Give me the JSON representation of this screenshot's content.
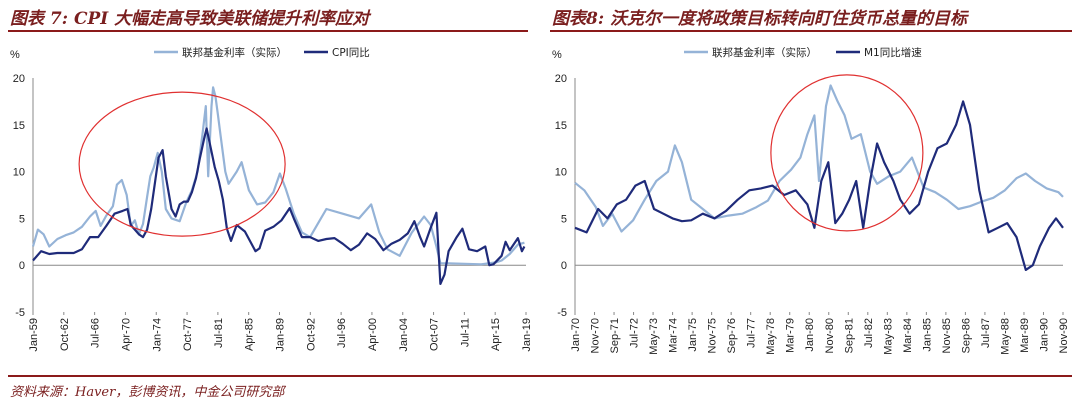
{
  "left_title": "图表 7: CPI 大幅走高导致美联储提升利率应对",
  "right_title": "图表8:  沃克尔一度将政策目标转向盯住货币总量的目标",
  "source": "资料来源：Haver，彭博资讯，中金公司研究部",
  "colors": {
    "light": "#95b3d7",
    "dark": "#1f2b7a",
    "circle": "#e03030",
    "title": "#7a1f1f"
  },
  "chart_data": [
    {
      "type": "line",
      "title": "图表 7: CPI 大幅走高导致美联储提升利率应对",
      "ylabel": "%",
      "ylim": [
        -5,
        20
      ],
      "yticks": [
        -5,
        0,
        5,
        10,
        15,
        20
      ],
      "xticks": [
        "Jan-59",
        "Oct-62",
        "Jul-66",
        "Apr-70",
        "Jan-74",
        "Oct-77",
        "Jul-81",
        "Apr-85",
        "Jan-89",
        "Oct-92",
        "Jul-96",
        "Apr-00",
        "Jan-04",
        "Oct-07",
        "Jul-11",
        "Apr-15",
        "Jan-19"
      ],
      "xrange": [
        1959.0,
        2019.5
      ],
      "legend_position": "top-center",
      "series": [
        {
          "name": "联邦基金利率（实际）",
          "color_key": "light",
          "x": [
            1959.0,
            1959.6,
            1960.3,
            1961.0,
            1962.0,
            1963.0,
            1964.0,
            1965.0,
            1966.0,
            1966.7,
            1967.3,
            1968.0,
            1968.8,
            1969.3,
            1969.9,
            1970.5,
            1971.0,
            1971.5,
            1972.0,
            1972.5,
            1973.0,
            1973.4,
            1973.8,
            1974.3,
            1974.8,
            1975.3,
            1976.0,
            1977.0,
            1977.8,
            1978.5,
            1979.2,
            1979.8,
            1980.2,
            1980.5,
            1980.9,
            1981.1,
            1981.4,
            1981.7,
            1982.0,
            1982.6,
            1983.0,
            1984.0,
            1984.6,
            1985.5,
            1986.5,
            1987.5,
            1988.5,
            1989.3,
            1990.0,
            1991.0,
            1992.0,
            1993.0,
            1994.0,
            1995.0,
            1997.0,
            1999.0,
            2000.5,
            2001.5,
            2002.5,
            2004.0,
            2005.5,
            2007.0,
            2007.8,
            2008.5,
            2009.0,
            2010.0,
            2012.0,
            2014.0,
            2015.8,
            2016.5,
            2017.5,
            2018.5,
            2019.3
          ],
          "y": [
            2.0,
            3.8,
            3.3,
            2.0,
            2.8,
            3.2,
            3.5,
            4.1,
            5.2,
            5.8,
            4.2,
            5.3,
            6.3,
            8.6,
            9.1,
            7.5,
            4.2,
            4.8,
            3.3,
            4.4,
            7.3,
            9.5,
            10.4,
            12.0,
            10.0,
            6.0,
            5.0,
            4.7,
            6.7,
            8.0,
            10.0,
            14.0,
            17.0,
            9.5,
            17.0,
            19.0,
            18.0,
            16.0,
            14.0,
            10.0,
            8.7,
            10.0,
            11.0,
            8.0,
            6.5,
            6.7,
            7.8,
            9.8,
            8.2,
            5.5,
            3.5,
            3.0,
            4.5,
            6.0,
            5.5,
            5.0,
            6.5,
            3.5,
            1.7,
            1.0,
            3.5,
            5.2,
            4.3,
            2.0,
            0.2,
            0.2,
            0.15,
            0.1,
            0.3,
            0.5,
            1.2,
            2.2,
            2.4
          ]
        },
        {
          "name": "CPI同比",
          "color_key": "dark",
          "x": [
            1959.0,
            1960.0,
            1961.0,
            1962.0,
            1963.0,
            1964.0,
            1965.0,
            1966.0,
            1967.0,
            1968.0,
            1969.0,
            1970.0,
            1970.6,
            1971.0,
            1972.0,
            1972.5,
            1973.0,
            1973.5,
            1974.0,
            1974.4,
            1974.9,
            1975.3,
            1976.0,
            1976.5,
            1977.0,
            1977.5,
            1978.0,
            1978.5,
            1979.0,
            1979.5,
            1980.0,
            1980.3,
            1980.8,
            1981.3,
            1981.8,
            1982.3,
            1982.8,
            1983.3,
            1984.0,
            1985.0,
            1986.3,
            1986.8,
            1987.5,
            1988.5,
            1989.5,
            1990.5,
            1991.0,
            1992.0,
            1993.0,
            1994.0,
            1995.0,
            1996.0,
            1997.0,
            1998.0,
            1999.0,
            2000.0,
            2001.0,
            2002.0,
            2003.0,
            2004.0,
            2005.0,
            2005.8,
            2006.5,
            2007.0,
            2007.8,
            2008.5,
            2009.0,
            2009.5,
            2010.0,
            2011.0,
            2011.7,
            2012.5,
            2013.5,
            2014.5,
            2015.0,
            2015.5,
            2016.5,
            2017.0,
            2017.5,
            2018.5,
            2019.0,
            2019.3
          ],
          "y": [
            0.5,
            1.5,
            1.2,
            1.3,
            1.3,
            1.3,
            1.7,
            3.0,
            3.0,
            4.2,
            5.5,
            5.8,
            6.0,
            4.3,
            3.3,
            3.0,
            3.8,
            6.0,
            9.0,
            11.5,
            12.3,
            9.5,
            6.0,
            5.2,
            6.5,
            6.8,
            6.8,
            7.8,
            9.3,
            11.5,
            13.5,
            14.6,
            12.6,
            10.5,
            9.0,
            7.0,
            3.9,
            2.6,
            4.3,
            3.6,
            1.5,
            1.8,
            3.7,
            4.1,
            4.8,
            6.1,
            5.0,
            3.0,
            3.0,
            2.6,
            2.8,
            2.9,
            2.3,
            1.6,
            2.2,
            3.4,
            2.8,
            1.6,
            2.3,
            2.7,
            3.4,
            4.7,
            3.0,
            2.0,
            4.0,
            5.6,
            -2.0,
            -1.0,
            1.5,
            3.0,
            3.9,
            1.7,
            1.5,
            2.0,
            0.0,
            0.1,
            1.0,
            2.5,
            1.6,
            2.9,
            1.5,
            2.0
          ]
        }
      ]
    },
    {
      "type": "line",
      "title": "图表8:  沃克尔一度将政策目标转向盯住货币总量的目标",
      "ylabel": "%",
      "ylim": [
        -5,
        20
      ],
      "yticks": [
        -5,
        0,
        5,
        10,
        15,
        20
      ],
      "xticks": [
        "Jan-70",
        "Nov-70",
        "Sep-71",
        "Jul-72",
        "May-73",
        "Mar-74",
        "Jan-75",
        "Nov-75",
        "Sep-76",
        "Jul-77",
        "May-78",
        "Mar-79",
        "Jan-80",
        "Nov-80",
        "Sep-81",
        "Jul-82",
        "May-83",
        "Mar-84",
        "Jan-85",
        "Nov-85",
        "Sep-86",
        "Jul-87",
        "May-88",
        "Mar-89",
        "Jan-90",
        "Nov-90"
      ],
      "xrange": [
        1970.0,
        1991.0
      ],
      "legend_position": "top-center",
      "series": [
        {
          "name": "联邦基金利率（实际）",
          "color_key": "light",
          "x": [
            1970.0,
            1970.4,
            1970.9,
            1971.2,
            1971.6,
            1972.0,
            1972.5,
            1973.0,
            1973.5,
            1974.0,
            1974.3,
            1974.6,
            1975.0,
            1975.5,
            1976.0,
            1976.6,
            1977.2,
            1977.8,
            1978.3,
            1978.8,
            1979.3,
            1979.7,
            1980.0,
            1980.3,
            1980.5,
            1980.8,
            1981.0,
            1981.3,
            1981.6,
            1981.9,
            1982.3,
            1982.7,
            1983.0,
            1983.5,
            1984.0,
            1984.5,
            1985.0,
            1985.5,
            1986.0,
            1986.5,
            1987.0,
            1987.5,
            1988.0,
            1988.5,
            1989.0,
            1989.4,
            1989.8,
            1990.3,
            1990.8,
            1991.0
          ],
          "y": [
            8.8,
            8.0,
            6.2,
            4.2,
            5.5,
            3.6,
            4.8,
            7.0,
            9.0,
            10.0,
            12.8,
            11.0,
            7.0,
            6.0,
            5.0,
            5.3,
            5.5,
            6.2,
            6.9,
            9.0,
            10.2,
            11.5,
            14.0,
            16.0,
            9.0,
            17.0,
            19.2,
            17.5,
            16.0,
            13.5,
            14.0,
            10.0,
            8.7,
            9.5,
            10.0,
            11.5,
            8.3,
            7.8,
            7.0,
            6.0,
            6.3,
            6.8,
            7.2,
            8.0,
            9.3,
            9.8,
            9.0,
            8.2,
            7.8,
            7.3
          ]
        },
        {
          "name": "M1同比增速",
          "color_key": "dark",
          "x": [
            1970.0,
            1970.5,
            1971.0,
            1971.4,
            1971.8,
            1972.2,
            1972.6,
            1973.0,
            1973.4,
            1973.8,
            1974.2,
            1974.6,
            1975.0,
            1975.5,
            1976.0,
            1976.5,
            1977.0,
            1977.5,
            1978.0,
            1978.5,
            1979.0,
            1979.5,
            1980.0,
            1980.3,
            1980.6,
            1980.9,
            1981.2,
            1981.5,
            1981.8,
            1982.1,
            1982.4,
            1982.7,
            1983.0,
            1983.3,
            1983.7,
            1984.0,
            1984.4,
            1984.8,
            1985.2,
            1985.6,
            1986.0,
            1986.4,
            1986.7,
            1987.0,
            1987.4,
            1987.8,
            1988.2,
            1988.6,
            1989.0,
            1989.4,
            1989.7,
            1990.0,
            1990.4,
            1990.7,
            1991.0
          ],
          "y": [
            4.0,
            3.5,
            6.0,
            5.0,
            6.5,
            7.0,
            8.5,
            9.0,
            6.0,
            5.5,
            5.0,
            4.7,
            4.8,
            5.5,
            5.0,
            5.8,
            7.0,
            8.0,
            8.2,
            8.5,
            7.5,
            8.0,
            6.5,
            4.0,
            9.0,
            11.0,
            4.5,
            5.5,
            7.0,
            9.0,
            4.0,
            9.0,
            13.0,
            11.0,
            9.0,
            7.0,
            5.5,
            6.5,
            10.0,
            12.5,
            13.0,
            15.0,
            17.5,
            15.0,
            8.0,
            3.5,
            4.0,
            4.5,
            3.0,
            -0.5,
            0.0,
            2.0,
            4.0,
            5.0,
            4.0
          ]
        }
      ]
    }
  ],
  "legend_labels": {
    "rate": "联邦基金利率（实际）",
    "cpi": "CPI同比",
    "m1": "M1同比增速",
    "unit": "%"
  }
}
